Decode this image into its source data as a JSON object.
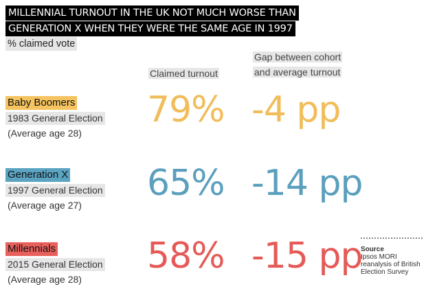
{
  "chart_data": {
    "type": "table",
    "title_lines": [
      "MILLENNIAL TURNOUT IN THE UK NOT MUCH WORSE THAN",
      "GENERATION X WHEN THEY WERE THE SAME AGE IN 1997"
    ],
    "subtitle": "% claimed vote",
    "columns": {
      "turnout": "Claimed turnout",
      "gap_line1": "Gap between cohort",
      "gap_line2": "and average turnout"
    },
    "rows": [
      {
        "cohort": "Baby Boomers",
        "election": "1983 General Election",
        "age": "(Average age 28)",
        "turnout": 79,
        "turnout_label": "79%",
        "gap": -4,
        "gap_label": "-4 pp",
        "color": "#f0bd5a",
        "name_bg": "#f5c35f"
      },
      {
        "cohort": "Generation X",
        "election": "1997 General Election",
        "age": "(Average age 27)",
        "turnout": 65,
        "turnout_label": "65%",
        "gap": -14,
        "gap_label": "-14 pp",
        "color": "#5a9fbd",
        "name_bg": "#5aa3c1"
      },
      {
        "cohort": "Millennials",
        "election": "2015 General Election",
        "age": "(Average age 28)",
        "turnout": 58,
        "turnout_label": "58%",
        "gap": -15,
        "gap_label": "-15 pp",
        "color": "#e55a57",
        "name_bg": "#e8605c"
      }
    ],
    "source": {
      "label": "Source",
      "text": "Ipsos MORI reanalysis of British Election Survey"
    }
  }
}
